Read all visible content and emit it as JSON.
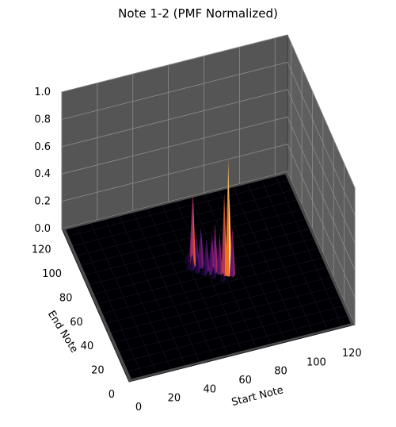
{
  "chart_data": {
    "type": "surface3d",
    "title": "Note 1-2 (PMF Normalized)",
    "xlabel": "Start Note",
    "ylabel": "End Note",
    "zlabel": "",
    "xlim": [
      0,
      127
    ],
    "ylim": [
      0,
      127
    ],
    "zlim": [
      0,
      1
    ],
    "x_ticks": [
      "0",
      "20",
      "40",
      "60",
      "80",
      "100",
      "120"
    ],
    "y_ticks": [
      "0",
      "20",
      "40",
      "60",
      "80",
      "100",
      "120"
    ],
    "z_ticks": [
      "0.0",
      "0.2",
      "0.4",
      "0.6",
      "0.8",
      "1.0"
    ],
    "colormap": "inferno",
    "pane_color": "#555555",
    "grid": true,
    "peaks": [
      {
        "x": 60,
        "y": 82,
        "z": 0.4
      },
      {
        "x": 58,
        "y": 74,
        "z": 0.55
      },
      {
        "x": 62,
        "y": 72,
        "z": 0.28
      },
      {
        "x": 64,
        "y": 68,
        "z": 0.22
      },
      {
        "x": 66,
        "y": 65,
        "z": 0.3
      },
      {
        "x": 68,
        "y": 66,
        "z": 0.36
      },
      {
        "x": 70,
        "y": 64,
        "z": 0.3
      },
      {
        "x": 72,
        "y": 62,
        "z": 0.6
      },
      {
        "x": 74,
        "y": 61,
        "z": 0.85
      },
      {
        "x": 75,
        "y": 62,
        "z": 0.55
      },
      {
        "x": 76,
        "y": 60,
        "z": 0.35
      },
      {
        "x": 61,
        "y": 78,
        "z": 0.2
      },
      {
        "x": 63,
        "y": 76,
        "z": 0.25
      },
      {
        "x": 65,
        "y": 72,
        "z": 0.2
      },
      {
        "x": 67,
        "y": 70,
        "z": 0.18
      },
      {
        "x": 69,
        "y": 68,
        "z": 0.22
      },
      {
        "x": 71,
        "y": 67,
        "z": 0.17
      },
      {
        "x": 73,
        "y": 65,
        "z": 0.25
      },
      {
        "x": 57,
        "y": 72,
        "z": 0.12
      },
      {
        "x": 59,
        "y": 69,
        "z": 0.12
      },
      {
        "x": 62,
        "y": 66,
        "z": 0.1
      },
      {
        "x": 66,
        "y": 62,
        "z": 0.08
      },
      {
        "x": 70,
        "y": 58,
        "z": 0.06
      },
      {
        "x": 56,
        "y": 78,
        "z": 0.08
      },
      {
        "x": 55,
        "y": 73,
        "z": 0.06
      }
    ]
  }
}
